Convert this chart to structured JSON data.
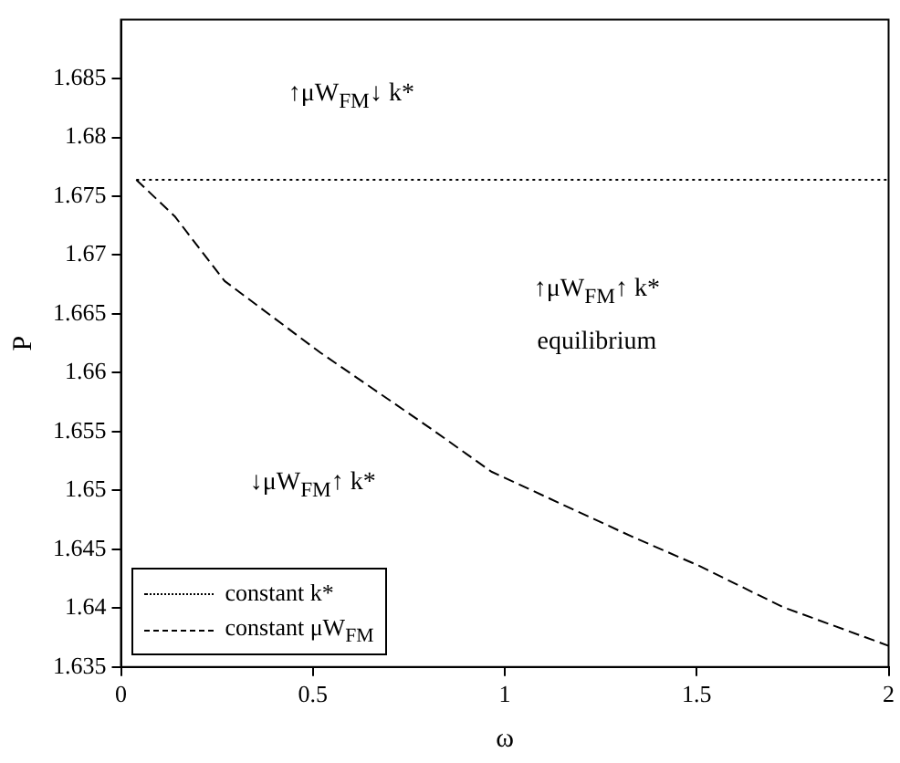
{
  "chart_data": {
    "type": "line",
    "xlabel": "ω",
    "ylabel": "P",
    "xlim": [
      0,
      2
    ],
    "xticks": [
      0,
      0.5,
      1,
      1.5,
      2
    ],
    "ylim": [
      1.635,
      1.69
    ],
    "yticks": [
      1.635,
      1.64,
      1.645,
      1.65,
      1.655,
      1.66,
      1.665,
      1.67,
      1.675,
      1.68,
      1.685
    ],
    "grid": false,
    "legend": "bottom left",
    "marker": "none",
    "series": [
      {
        "name": "constant k*",
        "color": "#000000",
        "line_style": "dotted",
        "x": [
          0.04,
          2
        ],
        "values": [
          1.6764,
          1.6764
        ]
      },
      {
        "name": "constant μW$_{FM}$",
        "color": "#000000",
        "line_style": "dashed",
        "x": [
          0.04,
          0.14,
          0.27,
          0.52,
          0.81,
          0.965,
          1.33,
          1.506,
          1.724,
          2.0
        ],
        "values": [
          1.6764,
          1.6733,
          1.6678,
          1.6617,
          1.6552,
          1.6516,
          1.6461,
          1.6436,
          1.6401,
          1.6368
        ]
      }
    ],
    "annotations": [
      "↑μW$_{FM}$↓ k*",
      "↓μW$_{FM}$↑ k*",
      "↑μW$_{FM}$↑ k*",
      "equilibrium"
    ]
  }
}
